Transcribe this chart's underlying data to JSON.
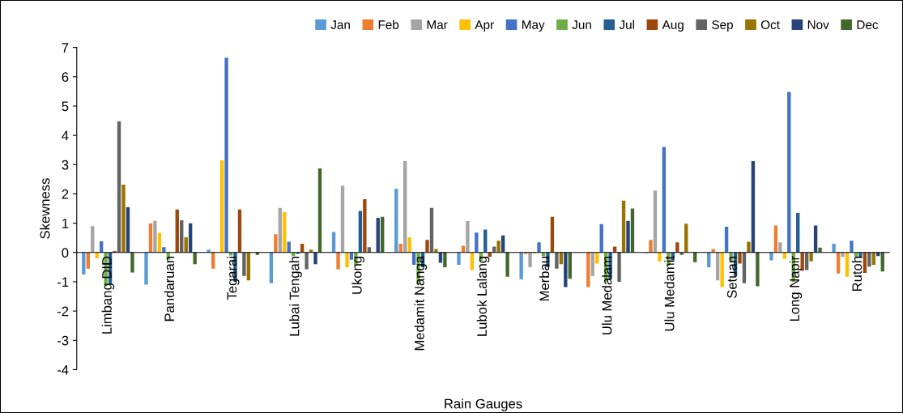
{
  "chart_data": {
    "type": "bar",
    "xlabel": "Rain Gauges",
    "ylabel": "Skewness",
    "categories": [
      "Limbang DID",
      "Pandaruan",
      "Tegarai",
      "Lubai Tengah",
      "Ukong",
      "Medamit Nanga",
      "Lubok Lalang",
      "Merbau",
      "Ulu Medalam",
      "Ulu Medamit",
      "Setuan",
      "Long Napir",
      "Rutoh"
    ],
    "series": [
      {
        "name": "Jan",
        "color": "#5b9bd5",
        "values": [
          -0.75,
          -1.1,
          0.1,
          -1.05,
          0.7,
          2.18,
          -0.42,
          -0.92,
          0,
          -0.02,
          -0.5,
          -0.27,
          0.3
        ]
      },
      {
        "name": "Feb",
        "color": "#ed7d31",
        "values": [
          -0.55,
          1.0,
          -0.55,
          0.62,
          -0.57,
          0.3,
          0.23,
          -0.05,
          -1.18,
          0.43,
          0.12,
          0.92,
          -0.72
        ]
      },
      {
        "name": "Mar",
        "color": "#a5a5a5",
        "values": [
          0.9,
          1.08,
          0,
          1.52,
          2.28,
          3.12,
          1.07,
          -0.5,
          -0.8,
          2.12,
          -0.95,
          0.35,
          -0.15
        ]
      },
      {
        "name": "Apr",
        "color": "#ffc000",
        "values": [
          -0.2,
          0.67,
          3.15,
          1.38,
          -0.5,
          0.52,
          -0.6,
          -0.03,
          -0.38,
          -0.3,
          -1.18,
          -0.22,
          -0.83
        ]
      },
      {
        "name": "May",
        "color": "#4472c4",
        "values": [
          0.38,
          0.18,
          6.65,
          0.37,
          -0.25,
          -0.42,
          0.68,
          0.35,
          0.97,
          3.6,
          0.88,
          5.48,
          0.4
        ]
      },
      {
        "name": "Jun",
        "color": "#70ad47",
        "values": [
          -1.15,
          -0.25,
          -0.1,
          -0.12,
          -0.45,
          -1.1,
          -0.28,
          -0.12,
          -1.0,
          -0.45,
          -0.3,
          -1.0,
          -0.15
        ]
      },
      {
        "name": "Jul",
        "color": "#255e91",
        "values": [
          -1.1,
          null,
          -1.0,
          -0.05,
          1.42,
          -0.5,
          0.78,
          -0.5,
          -0.9,
          -0.27,
          -0.8,
          1.35,
          -0.18
        ]
      },
      {
        "name": "Aug",
        "color": "#9e480e",
        "values": [
          0.05,
          1.47,
          1.47,
          0.3,
          1.82,
          0.43,
          -0.15,
          1.22,
          0.2,
          0.35,
          -0.38,
          -0.62,
          -0.7
        ]
      },
      {
        "name": "Sep",
        "color": "#636363",
        "values": [
          4.48,
          1.1,
          -0.8,
          -0.57,
          0.18,
          1.52,
          0.2,
          -0.55,
          -1.0,
          -0.08,
          -1.05,
          -0.6,
          -0.48
        ]
      },
      {
        "name": "Oct",
        "color": "#997300",
        "values": [
          2.32,
          0.52,
          -0.95,
          0.1,
          0,
          0.12,
          0.4,
          -0.4,
          1.77,
          0.98,
          0.37,
          -0.3,
          -0.42
        ]
      },
      {
        "name": "Nov",
        "color": "#264478",
        "values": [
          1.55,
          1.0,
          0,
          -0.4,
          1.18,
          -0.35,
          0.58,
          -1.18,
          1.08,
          null,
          3.12,
          0.92,
          -0.12
        ]
      },
      {
        "name": "Dec",
        "color": "#43682b",
        "values": [
          -0.68,
          -0.4,
          -0.08,
          2.87,
          1.22,
          -0.5,
          -0.83,
          -0.9,
          1.5,
          -0.33,
          -1.15,
          0.17,
          -0.65
        ]
      }
    ],
    "ylim": [
      -4,
      7
    ],
    "yticks": [
      -4,
      -3,
      -2,
      -1,
      0,
      1,
      2,
      3,
      4,
      5,
      6,
      7
    ],
    "grid": false,
    "legend": "top right"
  }
}
